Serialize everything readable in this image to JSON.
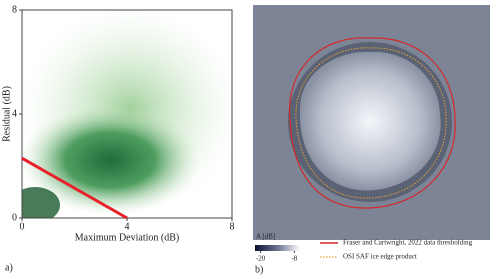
{
  "chart_data": [
    {
      "type": "heatmap-line",
      "panel_label": "a)",
      "xlabel": "Maximum Deviation (dB)",
      "ylabel": "Residual (dB)",
      "xlim": [
        0,
        8
      ],
      "ylim": [
        0,
        8
      ],
      "xticks": [
        0,
        4,
        8
      ],
      "yticks": [
        0,
        4,
        8
      ],
      "series": [
        {
          "x": [
            0,
            4
          ],
          "values": [
            2.3,
            0
          ],
          "color": "#e8202a"
        }
      ]
    },
    {
      "type": "image",
      "panel_label": "b)",
      "colorbar_label": "A [dB]",
      "clim": [
        -22,
        -6
      ],
      "colorbar_ticks": [
        -20,
        -8
      ],
      "legend": [
        {
          "name": "Fraser and Cartwright, 2022 data thresholding",
          "color": "#d62728",
          "style": "solid"
        },
        {
          "name": "OSI SAF ice edge product",
          "color": "#f0a030",
          "style": "dotted"
        }
      ]
    }
  ]
}
